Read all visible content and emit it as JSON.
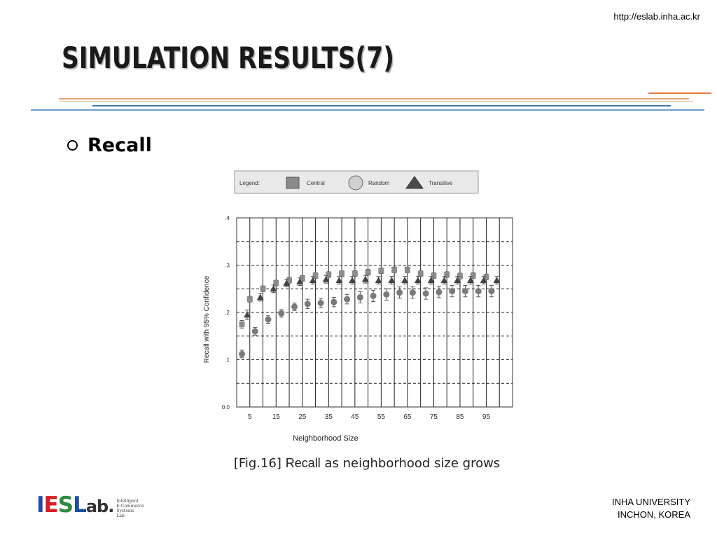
{
  "header": {
    "url": "http://eslab.inha.ac.kr",
    "title": "SIMULATION RESULTS(7)"
  },
  "bullet": {
    "label": "Recall"
  },
  "figure": {
    "caption_prefix": "[Fig.16]",
    "caption_keyword": "Recall",
    "caption_rest": "as neighborhood size grows"
  },
  "footer": {
    "line1": "INHA UNIVERSITY",
    "line2": "INCHON, KOREA"
  },
  "logo": {
    "main_i": "I",
    "main_e": "E",
    "main_s": "S",
    "main_l": "L",
    "main_rest": "ab.",
    "sub_lines": [
      "Intelligent",
      "E-Commerce",
      "Systems",
      "Lab."
    ],
    "colors": {
      "i": "#1f4fa0",
      "e": "#d81f26",
      "s": "#2e8b3e",
      "l": "#1f4fa0",
      "rest": "#333333"
    }
  },
  "chart_data": {
    "type": "scatter",
    "xlabel": "Neighborhood Size",
    "ylabel": "Recall with 95% Confidence",
    "yticks": [
      ".4",
      ".3",
      ".2",
      ".1",
      "0.0"
    ],
    "xticks": [
      "5",
      "15",
      "25",
      "35",
      "45",
      "55",
      "65",
      "75",
      "85",
      "95"
    ],
    "ylim": [
      0,
      0.4
    ],
    "xlim": [
      0,
      105
    ],
    "grid": "dashed horizontal, solid vertical",
    "legend": {
      "title": "Legend:",
      "placement": "top",
      "items": [
        {
          "name": "Central",
          "shape": "square",
          "color": "#8a8a8a"
        },
        {
          "name": "Random",
          "shape": "circle",
          "color": "#d0d0d0"
        },
        {
          "name": "Transitive",
          "shape": "triangle",
          "color": "#4a4a4a"
        }
      ]
    },
    "series": [
      {
        "name": "Central",
        "shape": "square",
        "color": "#8c8c8c",
        "x": [
          2,
          5,
          10,
          15,
          20,
          25,
          30,
          35,
          40,
          45,
          50,
          55,
          60,
          65,
          70,
          75,
          80,
          85,
          90,
          95
        ],
        "y": [
          0.175,
          0.228,
          0.25,
          0.262,
          0.268,
          0.272,
          0.278,
          0.28,
          0.282,
          0.282,
          0.285,
          0.288,
          0.29,
          0.29,
          0.282,
          0.278,
          0.28,
          0.277,
          0.278,
          0.275
        ],
        "err": [
          0.008,
          0.006,
          0.006,
          0.006,
          0.006,
          0.006,
          0.006,
          0.006,
          0.006,
          0.006,
          0.006,
          0.006,
          0.006,
          0.006,
          0.006,
          0.006,
          0.006,
          0.006,
          0.006,
          0.006
        ]
      },
      {
        "name": "Random",
        "shape": "circle",
        "color": "#7a7a7a",
        "x": [
          2,
          7,
          12,
          17,
          22,
          27,
          32,
          37,
          42,
          47,
          52,
          57,
          62,
          67,
          72,
          77,
          82,
          87,
          92,
          97
        ],
        "y": [
          0.112,
          0.16,
          0.185,
          0.198,
          0.212,
          0.218,
          0.22,
          0.222,
          0.228,
          0.232,
          0.235,
          0.238,
          0.242,
          0.242,
          0.24,
          0.243,
          0.245,
          0.245,
          0.245,
          0.245
        ],
        "err": [
          0.008,
          0.008,
          0.008,
          0.008,
          0.008,
          0.01,
          0.01,
          0.01,
          0.01,
          0.012,
          0.012,
          0.012,
          0.012,
          0.012,
          0.012,
          0.012,
          0.012,
          0.012,
          0.012,
          0.012
        ]
      },
      {
        "name": "Transitive",
        "shape": "triangle",
        "color": "#444444",
        "x": [
          4,
          9,
          14,
          19,
          24,
          29,
          34,
          39,
          44,
          49,
          54,
          59,
          64,
          69,
          74,
          79,
          84,
          89,
          94,
          99
        ],
        "y": [
          0.195,
          0.232,
          0.25,
          0.262,
          0.265,
          0.268,
          0.27,
          0.268,
          0.268,
          0.27,
          0.268,
          0.268,
          0.268,
          0.268,
          0.268,
          0.268,
          0.268,
          0.268,
          0.268,
          0.268
        ],
        "err": [
          0.01,
          0.008,
          0.008,
          0.008,
          0.008,
          0.008,
          0.008,
          0.008,
          0.008,
          0.008,
          0.008,
          0.008,
          0.008,
          0.008,
          0.008,
          0.008,
          0.008,
          0.008,
          0.008,
          0.008
        ]
      }
    ]
  }
}
